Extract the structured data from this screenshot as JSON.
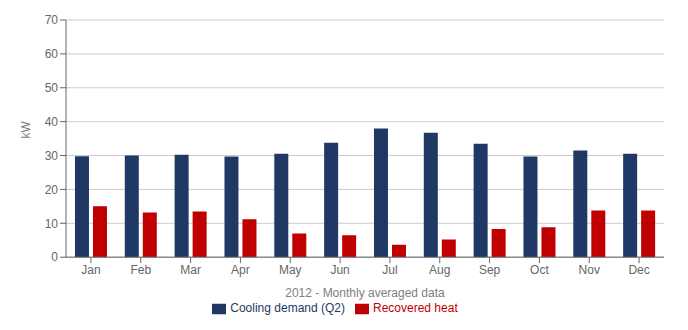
{
  "chart_data": {
    "type": "bar",
    "xlabel": "2012 - Monthly averaged data",
    "ylabel": "kW",
    "categories": [
      "Jan",
      "Feb",
      "Mar",
      "Apr",
      "May",
      "Jun",
      "Jul",
      "Aug",
      "Sep",
      "Oct",
      "Nov",
      "Dec"
    ],
    "series": [
      {
        "name": "Cooling demand (Q2)",
        "color": "#1F3864",
        "values": [
          29.8,
          30.0,
          30.2,
          29.7,
          30.5,
          33.8,
          38.0,
          36.7,
          33.5,
          29.7,
          31.5,
          30.5
        ]
      },
      {
        "name": "Recovered heat",
        "color": "#C00000",
        "values": [
          15.0,
          13.2,
          13.5,
          11.2,
          7.0,
          6.5,
          3.7,
          5.2,
          8.3,
          8.8,
          13.8,
          13.8
        ]
      }
    ],
    "ylim": [
      0,
      70
    ],
    "yticks": [
      0,
      10,
      20,
      30,
      40,
      50,
      60,
      70
    ],
    "grid": true,
    "legend": "bottom"
  }
}
